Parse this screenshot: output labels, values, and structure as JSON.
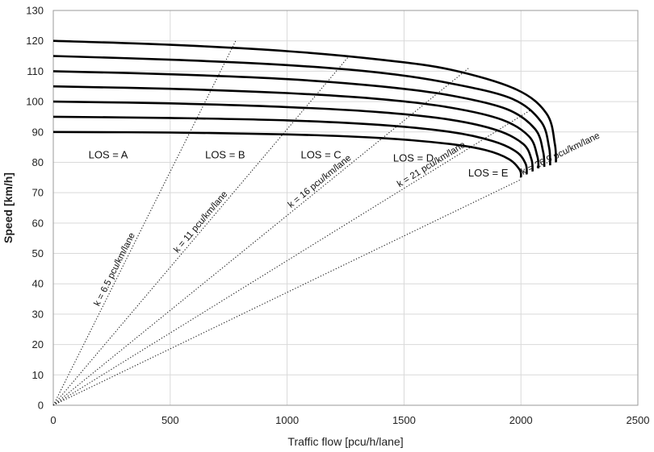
{
  "chart_data": {
    "type": "line",
    "xlabel": "Traffic flow [pcu/h/lane]",
    "ylabel": "Speed [km/h]",
    "xlim": [
      0,
      2500
    ],
    "ylim": [
      0,
      130
    ],
    "x_ticks": [
      0,
      500,
      1000,
      1500,
      2000,
      2500
    ],
    "y_ticks": [
      0,
      10,
      20,
      30,
      40,
      50,
      60,
      70,
      80,
      90,
      100,
      110,
      120,
      130
    ],
    "grid": true,
    "speed_flow_curves": [
      {
        "free_flow_speed": 90,
        "points": [
          [
            0,
            90
          ],
          [
            500,
            89.8
          ],
          [
            1000,
            89.2
          ],
          [
            1400,
            88
          ],
          [
            1700,
            86
          ],
          [
            1850,
            84
          ],
          [
            1950,
            81
          ],
          [
            1995,
            77.5
          ],
          [
            2000,
            75
          ]
        ]
      },
      {
        "free_flow_speed": 95,
        "points": [
          [
            0,
            95
          ],
          [
            500,
            94.6
          ],
          [
            1000,
            93.8
          ],
          [
            1400,
            92.3
          ],
          [
            1700,
            90
          ],
          [
            1880,
            87
          ],
          [
            1980,
            83.5
          ],
          [
            2020,
            79.5
          ],
          [
            2025,
            76
          ]
        ]
      },
      {
        "free_flow_speed": 100,
        "points": [
          [
            0,
            100
          ],
          [
            500,
            99.4
          ],
          [
            1000,
            98.2
          ],
          [
            1400,
            96.5
          ],
          [
            1700,
            94
          ],
          [
            1900,
            90.5
          ],
          [
            2010,
            86
          ],
          [
            2045,
            81
          ],
          [
            2050,
            77
          ]
        ]
      },
      {
        "free_flow_speed": 105,
        "points": [
          [
            0,
            105
          ],
          [
            500,
            104.2
          ],
          [
            1000,
            102.8
          ],
          [
            1400,
            100.8
          ],
          [
            1700,
            98
          ],
          [
            1920,
            94
          ],
          [
            2035,
            88.5
          ],
          [
            2070,
            82
          ],
          [
            2075,
            78
          ]
        ]
      },
      {
        "free_flow_speed": 110,
        "points": [
          [
            0,
            110
          ],
          [
            500,
            109
          ],
          [
            1000,
            107.4
          ],
          [
            1400,
            105
          ],
          [
            1700,
            102
          ],
          [
            1940,
            97.5
          ],
          [
            2060,
            91
          ],
          [
            2095,
            83.5
          ],
          [
            2100,
            78.5
          ]
        ]
      },
      {
        "free_flow_speed": 115,
        "points": [
          [
            0,
            115
          ],
          [
            500,
            113.8
          ],
          [
            1000,
            112
          ],
          [
            1400,
            109.5
          ],
          [
            1700,
            106
          ],
          [
            1960,
            101
          ],
          [
            2085,
            93.5
          ],
          [
            2120,
            85
          ],
          [
            2125,
            79
          ]
        ]
      },
      {
        "free_flow_speed": 120,
        "points": [
          [
            0,
            120
          ],
          [
            500,
            118.7
          ],
          [
            1000,
            116.6
          ],
          [
            1400,
            113.8
          ],
          [
            1700,
            110.5
          ],
          [
            1980,
            104
          ],
          [
            2110,
            96
          ],
          [
            2145,
            86
          ],
          [
            2150,
            80
          ]
        ]
      }
    ],
    "density_lines": [
      {
        "label": "k = 6.5 pcu/km/lane",
        "k": 6.5,
        "x_end": 780
      },
      {
        "label": "k = 11 pcu/km/lane",
        "k": 11,
        "x_end": 1265
      },
      {
        "label": "k = 16 pcu/km/lane",
        "k": 16,
        "x_end": 1775
      },
      {
        "label": "k = 21 pcu/km/lane",
        "k": 21,
        "x_end": 2040
      },
      {
        "label": "k = 26.9 pcu/km/lane",
        "k": 26.9,
        "x_end": 2000
      }
    ],
    "density_label_anchor_x": [
      285,
      650,
      1155,
      1630,
      2180
    ],
    "los_labels": [
      {
        "text": "LOS = A",
        "x": 235,
        "y": 82.5
      },
      {
        "text": "LOS = B",
        "x": 735,
        "y": 82.5
      },
      {
        "text": "LOS = C",
        "x": 1145,
        "y": 82.5
      },
      {
        "text": "LOS = D",
        "x": 1540,
        "y": 81.5
      },
      {
        "text": "LOS = E",
        "x": 1860,
        "y": 76.5
      }
    ]
  }
}
